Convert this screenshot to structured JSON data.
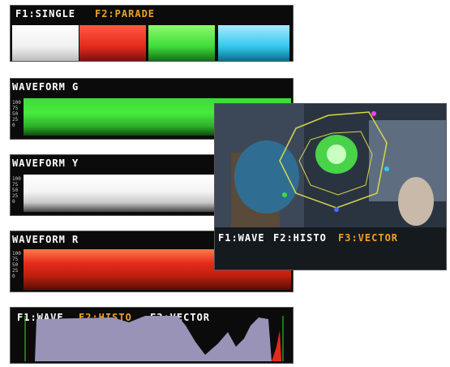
{
  "panels": {
    "parade": {
      "label_f1": "F1:SINGLE",
      "label_f2": "F2:PARADE",
      "channels": [
        "white",
        "red",
        "green",
        "cyan"
      ]
    },
    "waveform_g": {
      "label": "WAVEFORM G",
      "scale": [
        "100",
        "75",
        "50",
        "25",
        "0"
      ]
    },
    "waveform_y": {
      "label": "WAVEFORM Y",
      "scale": [
        "100",
        "75",
        "50",
        "25",
        "0"
      ]
    },
    "waveform_r": {
      "label": "WAVEFORM R",
      "scale": [
        "100",
        "75",
        "50",
        "25",
        "0"
      ]
    },
    "histogram": {
      "label_f1": "F1:WAVE",
      "label_f2": "F2:HISTO",
      "label_f3": "F3:VECTOR"
    },
    "vectorscope": {
      "label_f1": "F1:WAVE",
      "label_f2": "F2:HISTO",
      "label_f3": "F3:VECTOR"
    }
  },
  "colors": {
    "highlight": "#f0a020",
    "green": "#3ddc3a",
    "red": "#e52a1c",
    "cyan": "#33c8ee",
    "histogram_fill": "#9a93b8"
  }
}
